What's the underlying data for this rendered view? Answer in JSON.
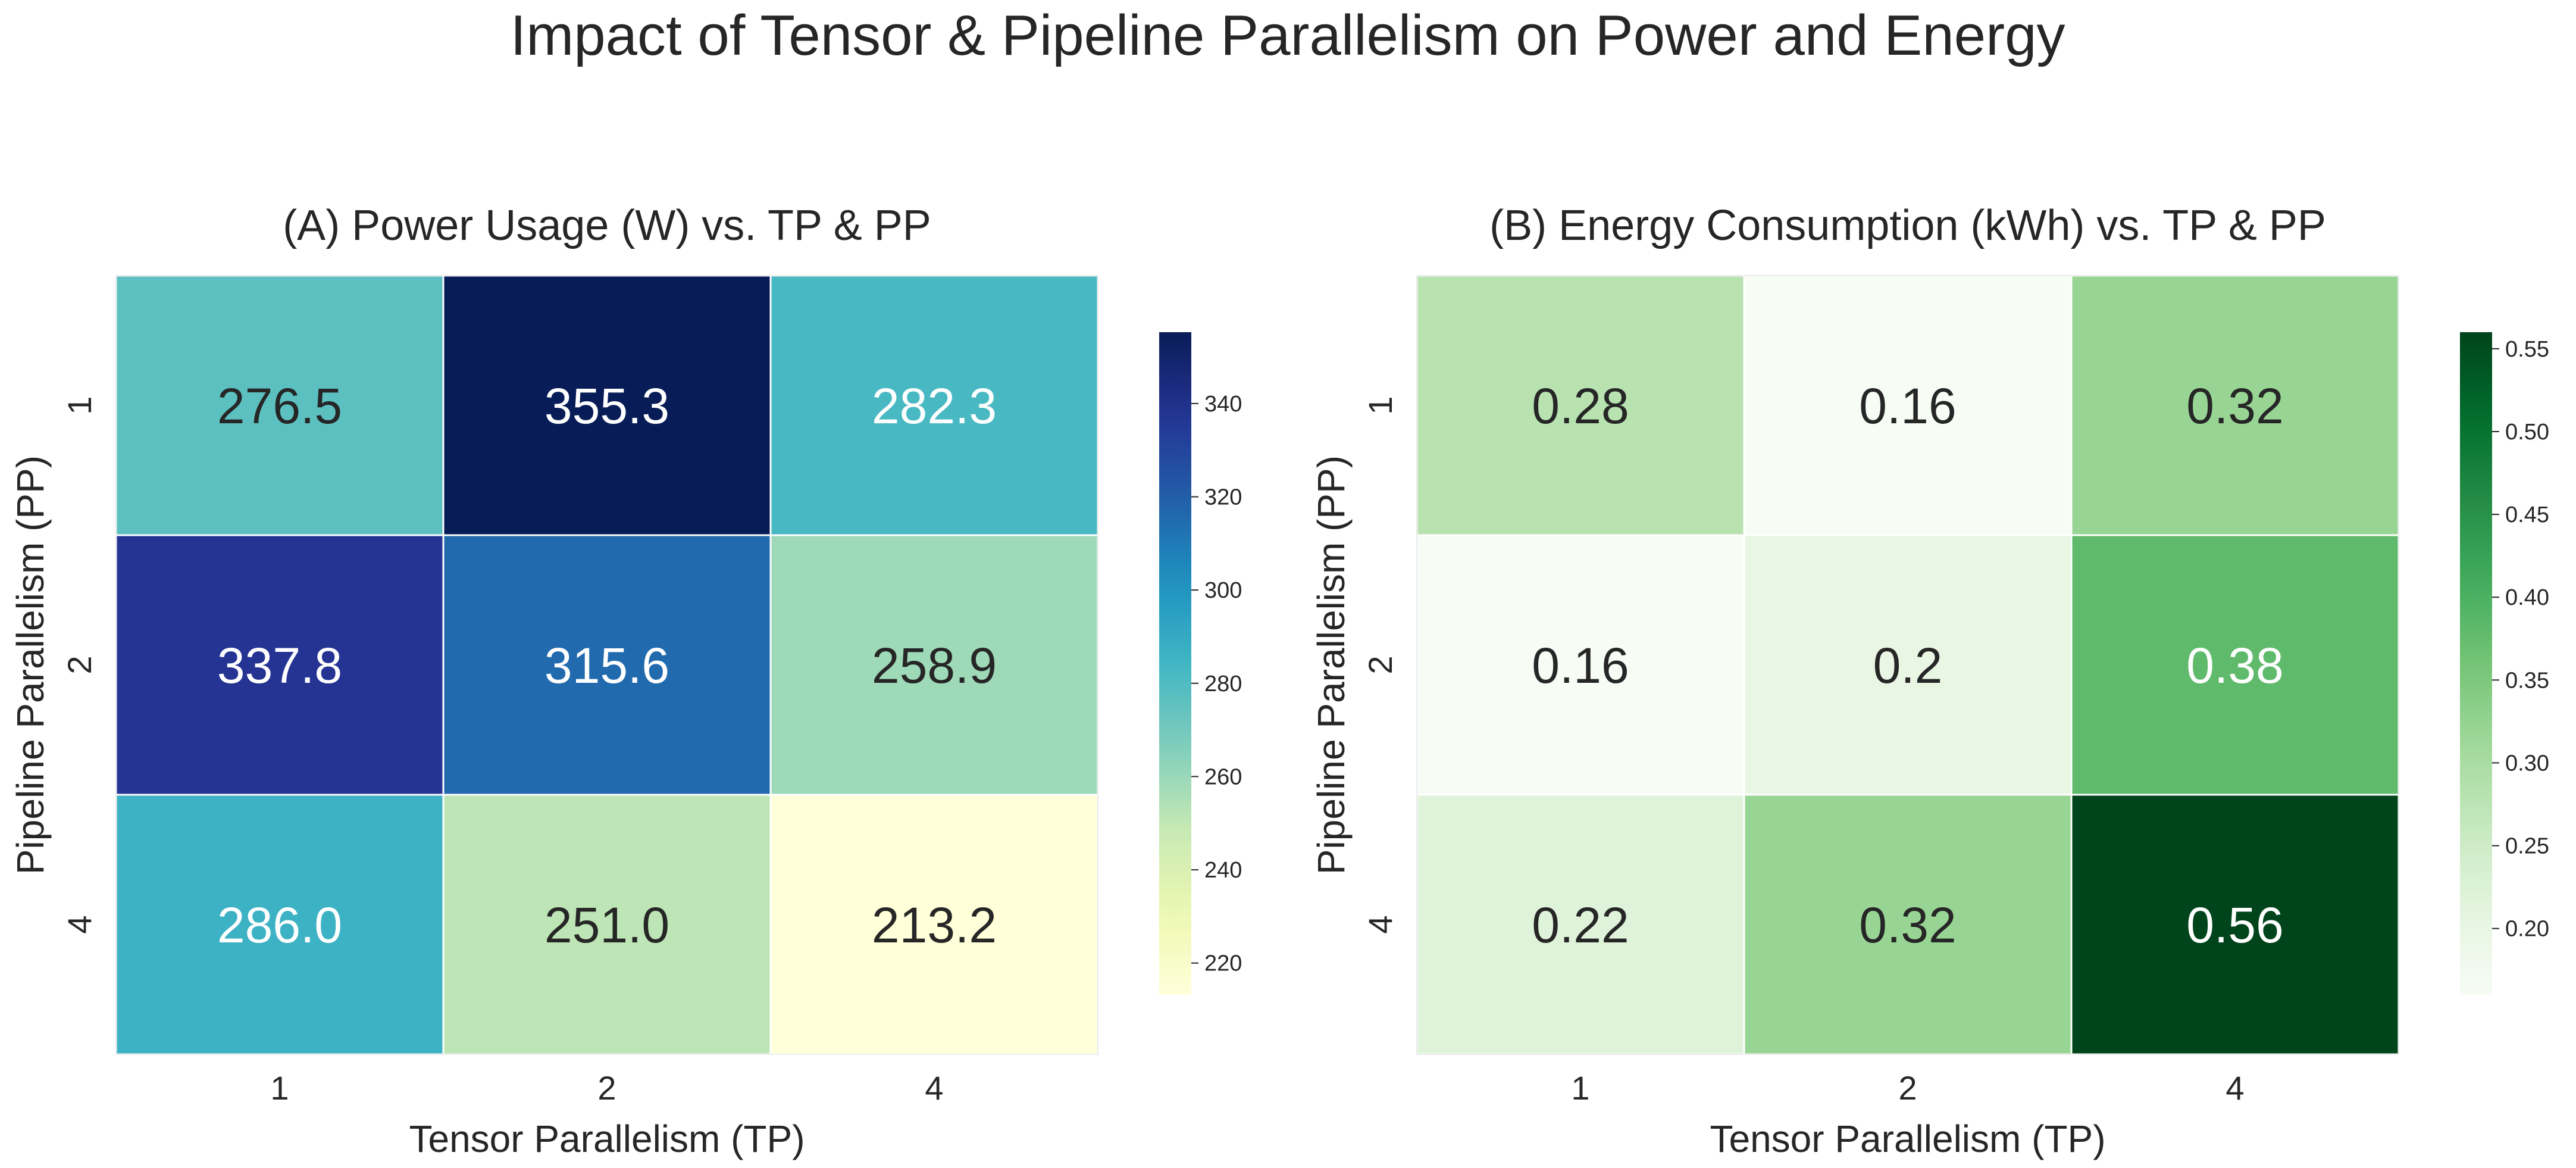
{
  "figure": {
    "title": "Impact of Tensor & Pipeline Parallelism on Power and Energy"
  },
  "chart_data": [
    {
      "type": "heatmap",
      "title": "(A) Power Usage (W) vs. TP & PP",
      "xlabel": "Tensor Parallelism (TP)",
      "ylabel": "Pipeline Parallelism (PP)",
      "x_categories": [
        "1",
        "2",
        "4"
      ],
      "y_categories": [
        "1",
        "2",
        "4"
      ],
      "values": [
        [
          276.5,
          355.3,
          282.3
        ],
        [
          337.8,
          315.6,
          258.9
        ],
        [
          286.0,
          251.0,
          213.2
        ]
      ],
      "value_labels": [
        [
          "276.5",
          "355.3",
          "282.3"
        ],
        [
          "337.8",
          "315.6",
          "258.9"
        ],
        [
          "286.0",
          "251.0",
          "213.2"
        ]
      ],
      "colormap": "YlGnBu",
      "color_range": [
        213.2,
        355.3
      ],
      "colorbar_ticks": [
        "220",
        "240",
        "260",
        "280",
        "300",
        "320",
        "340"
      ]
    },
    {
      "type": "heatmap",
      "title": "(B) Energy Consumption (kWh) vs. TP & PP",
      "xlabel": "Tensor Parallelism (TP)",
      "ylabel": "Pipeline Parallelism (PP)",
      "x_categories": [
        "1",
        "2",
        "4"
      ],
      "y_categories": [
        "1",
        "2",
        "4"
      ],
      "values": [
        [
          0.28,
          0.16,
          0.32
        ],
        [
          0.16,
          0.2,
          0.38
        ],
        [
          0.22,
          0.32,
          0.56
        ]
      ],
      "value_labels": [
        [
          "0.28",
          "0.16",
          "0.32"
        ],
        [
          "0.16",
          "0.2",
          "0.38"
        ],
        [
          "0.22",
          "0.32",
          "0.56"
        ]
      ],
      "colormap": "Greens",
      "color_range": [
        0.16,
        0.56
      ],
      "colorbar_ticks": [
        "0.20",
        "0.25",
        "0.30",
        "0.35",
        "0.40",
        "0.45",
        "0.50",
        "0.55"
      ]
    }
  ]
}
